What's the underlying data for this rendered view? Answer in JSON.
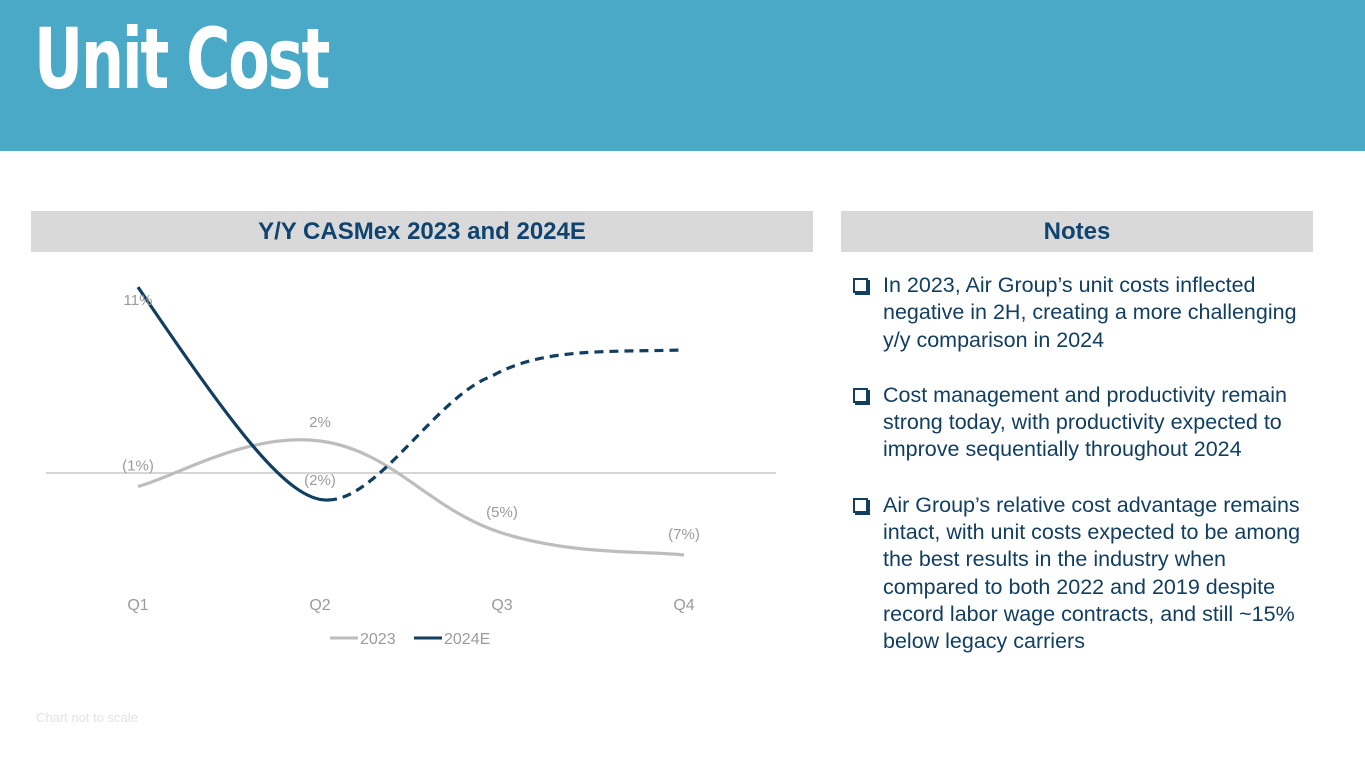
{
  "header": {
    "title": "Unit Cost"
  },
  "colors": {
    "header_band": "#49a9c6",
    "panel_header_bg": "#d9d9d9",
    "dark_blue": "#0f4470",
    "series_2023": "#bdbdbd",
    "series_2024E": "#123e60",
    "label_gray": "#9b9b9b"
  },
  "chart_panel": {
    "title": "Y/Y CASMex 2023 and 2024E"
  },
  "notes_panel": {
    "title": "Notes",
    "items": [
      {
        "text": "In 2023, Air Group’s unit costs inflected negative in 2H, creating a more challenging y/y comparison in 2024"
      },
      {
        "text": "Cost management and productivity remain strong today, with productivity expected to improve sequentially throughout 2024"
      },
      {
        "text": "Air Group’s relative cost advantage remains intact, with unit costs expected to be among the best results in the industry when compared to both 2022 and 2019 despite record labor wage contracts, and still ~15% below legacy carriers"
      }
    ]
  },
  "footnote": "Chart not to scale",
  "chart_data": {
    "type": "line",
    "title": "Y/Y CASMex 2023 and 2024E",
    "xlabel": "",
    "ylabel": "",
    "categories": [
      "Q1",
      "Q2",
      "Q3",
      "Q4"
    ],
    "note": "Chart not to scale; Q3 and Q4 2024E points are unlabeled estimates (dashed)",
    "series": [
      {
        "name": "2023",
        "values": [
          -1,
          2,
          -5,
          -7
        ],
        "labels": [
          "(1%)",
          "2%",
          "(5%)",
          "(7%)"
        ],
        "style": "solid"
      },
      {
        "name": "2024E",
        "values": [
          11,
          -2,
          null,
          null
        ],
        "labels": [
          "11%",
          "(2%)",
          "",
          ""
        ],
        "style": "solid for Q1-Q2, dashed projection for Q2-Q4"
      }
    ],
    "baseline": 0,
    "grid": false,
    "legend": {
      "position": "bottom",
      "entries": [
        "2023",
        "2024E"
      ]
    }
  }
}
